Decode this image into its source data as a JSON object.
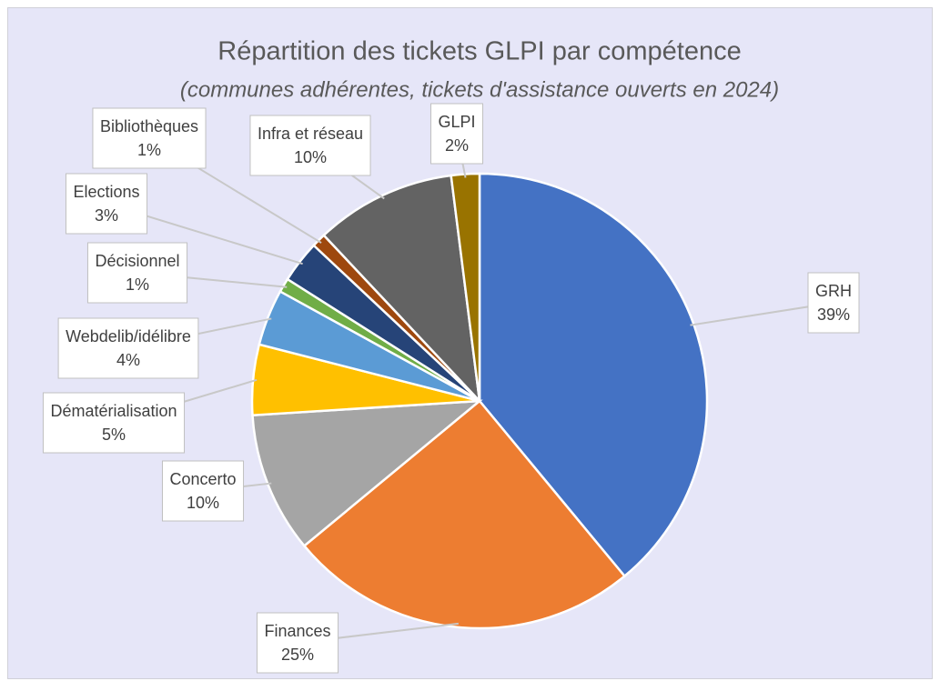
{
  "chart_data": {
    "type": "pie",
    "title": "Répartition des tickets GLPI par compétence",
    "subtitle": "(communes adhérentes, tickets d'assistance ouverts en 2024)",
    "categories": [
      "GRH",
      "Finances",
      "Concerto",
      "Dématérialisation",
      "Webdelib/idélibre",
      "Décisionnel",
      "Elections",
      "Bibliothèques",
      "Infra et réseau",
      "GLPI"
    ],
    "values": [
      39,
      25,
      10,
      5,
      4,
      1,
      3,
      1,
      10,
      2
    ],
    "value_labels": [
      "39%",
      "25%",
      "10%",
      "5%",
      "4%",
      "1%",
      "3%",
      "1%",
      "10%",
      "2%"
    ],
    "colors": [
      "#4472c4",
      "#ed7d31",
      "#a5a5a5",
      "#ffc000",
      "#5b9bd5",
      "#70ad47",
      "#264478",
      "#9e480e",
      "#636363",
      "#997300"
    ]
  }
}
